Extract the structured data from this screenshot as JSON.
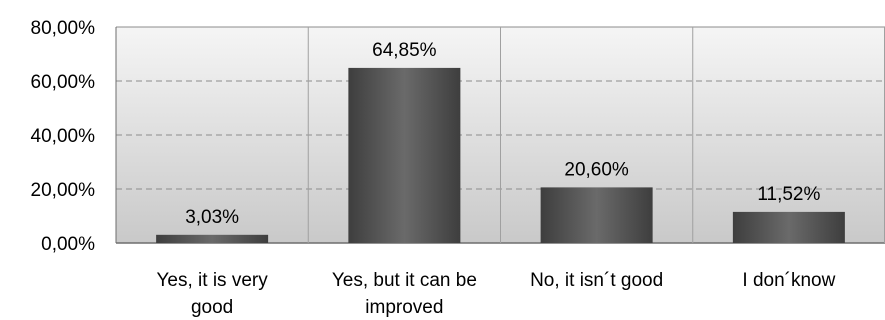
{
  "chart_data": {
    "type": "bar",
    "title": "",
    "xlabel": "",
    "ylabel": "",
    "categories": [
      [
        "Yes, it is very",
        "good"
      ],
      [
        "Yes, but it can be",
        "improved"
      ],
      [
        "No, it isn´t good"
      ],
      [
        "I don´know"
      ]
    ],
    "values": [
      3.03,
      64.85,
      20.6,
      11.52
    ],
    "data_labels": [
      "3,03%",
      "64,85%",
      "20,60%",
      "11,52%"
    ],
    "ylim": [
      0,
      80
    ],
    "yticks": [
      0,
      20,
      40,
      60,
      80
    ],
    "ytick_labels": [
      "0,00%",
      "20,00%",
      "40,00%",
      "60,00%",
      "80,00%"
    ],
    "grid": "dashed horizontal, solid vertical category separators",
    "legend": "none",
    "colors": {
      "bar_top": "#6a6a6a",
      "bar_bottom": "#3e3e3e",
      "plot_bg_top": "#f5f5f5",
      "plot_bg_bottom": "#c9c9c9",
      "grid": "#8c8c8c",
      "separator": "#a0a0a0"
    }
  }
}
